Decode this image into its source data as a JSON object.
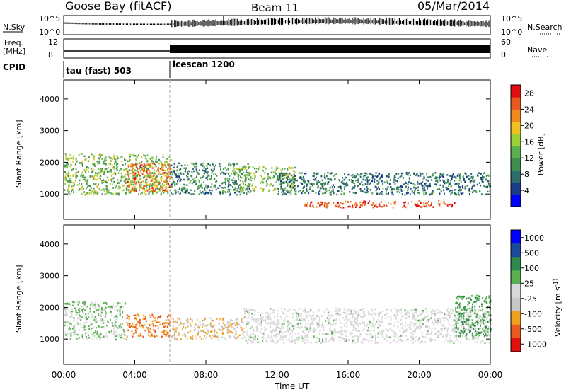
{
  "header": {
    "station": "Goose Bay (fitACF)",
    "beam": "Beam 11",
    "date": "05/Mar/2014"
  },
  "side_labels": {
    "nsky": "N.Sky",
    "nsearch": "N.Search",
    "freq_line1": "Freq.",
    "freq_line2": "[MHz]",
    "nave": "Nave",
    "cpid": "CPID"
  },
  "strip_ticks": {
    "noise_left_top": "10^5",
    "noise_left_bottom": "10^0",
    "noise_right_top": "10^5",
    "noise_right_bottom": "10^0",
    "freq_left_top": "12",
    "freq_left_bottom": "8",
    "nave_right_top": "60",
    "nave_right_bottom": "0"
  },
  "cpid_segments": [
    {
      "label": "tau (fast) 503"
    },
    {
      "label": "icescan 1200"
    }
  ],
  "x_axis": {
    "label": "Time UT",
    "ticks": [
      "00:00",
      "04:00",
      "08:00",
      "12:00",
      "16:00",
      "20:00",
      "00:00"
    ]
  },
  "colors": {
    "power_scale": [
      "#0000ff",
      "#1a3a8a",
      "#2e6b6b",
      "#3f8f4f",
      "#5ab050",
      "#9ccf3a",
      "#f0c020",
      "#f08a20",
      "#e85a20",
      "#e01010"
    ],
    "velocity_scale": [
      "#e01010",
      "#e85a20",
      "#f0a020",
      "#c8c8c8",
      "#d8d8d8",
      "#5ab050",
      "#2e8a4a",
      "#1a4a9a",
      "#0000ff"
    ]
  },
  "chart_data": [
    {
      "type": "heatmap",
      "title": "",
      "xlabel": "Time UT",
      "ylabel": "Slant Range [km]",
      "xlim": [
        0,
        24
      ],
      "ylim": [
        200,
        4600
      ],
      "y_ticks": [
        "1000",
        "2000",
        "3000",
        "4000"
      ],
      "colorbar": {
        "label": "Power [dB]",
        "ticks": [
          "4",
          "8",
          "12",
          "16",
          "20",
          "24",
          "28"
        ],
        "range": [
          0,
          30
        ]
      },
      "regions": [
        {
          "t": [
            0.0,
            6.0
          ],
          "r": [
            1000,
            2300
          ],
          "value": 14
        },
        {
          "t": [
            3.5,
            6.0
          ],
          "r": [
            1100,
            2000
          ],
          "value": 24
        },
        {
          "t": [
            6.0,
            10.5
          ],
          "r": [
            1000,
            2000
          ],
          "value": 10
        },
        {
          "t": [
            9.5,
            13.0
          ],
          "r": [
            1100,
            1900
          ],
          "value": 15
        },
        {
          "t": [
            12.0,
            24.0
          ],
          "r": [
            1000,
            1700
          ],
          "value": 8
        },
        {
          "t": [
            13.5,
            22.0
          ],
          "r": [
            600,
            800
          ],
          "value": 26
        }
      ]
    },
    {
      "type": "heatmap",
      "title": "",
      "xlabel": "Time UT",
      "ylabel": "Slant Range [km]",
      "xlim": [
        0,
        24
      ],
      "ylim": [
        200,
        4600
      ],
      "y_ticks": [
        "1000",
        "2000",
        "3000",
        "4000"
      ],
      "colorbar": {
        "label": "Velocity [m s^-1]",
        "ticks": [
          "1000",
          "500",
          "100",
          "25",
          "-25",
          "-100",
          "-500",
          "-1000"
        ]
      },
      "regions": [
        {
          "t": [
            0.0,
            3.5
          ],
          "r": [
            1000,
            2200
          ],
          "value": 25
        },
        {
          "t": [
            3.5,
            6.0
          ],
          "r": [
            1100,
            1800
          ],
          "value": -500
        },
        {
          "t": [
            6.0,
            10.0
          ],
          "r": [
            1000,
            1700
          ],
          "value": -100
        },
        {
          "t": [
            10.0,
            24.0
          ],
          "r": [
            900,
            2000
          ],
          "value": 0
        },
        {
          "t": [
            22.0,
            24.0
          ],
          "r": [
            1100,
            2400
          ],
          "value": 100
        }
      ]
    }
  ]
}
